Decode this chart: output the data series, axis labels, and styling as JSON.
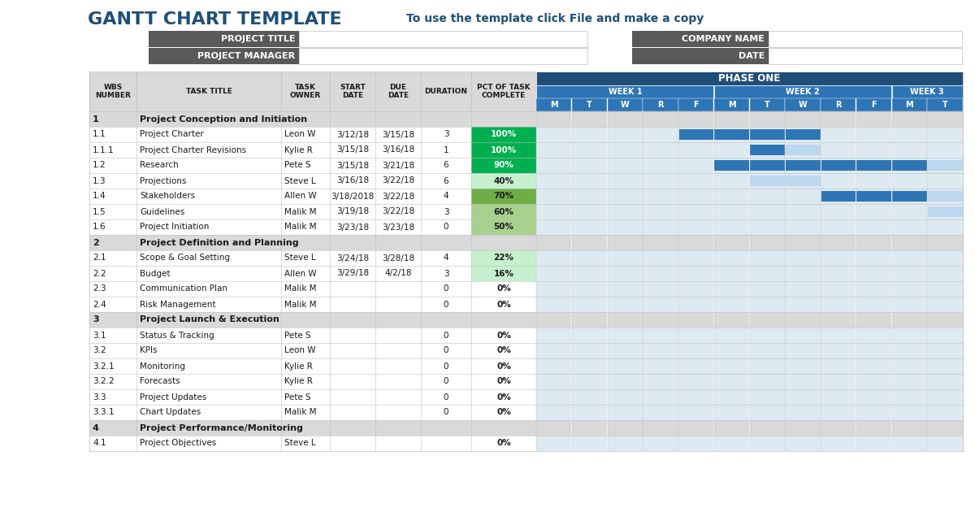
{
  "title": "GANTT CHART TEMPLATE",
  "subtitle": "To use the template click File and make a copy",
  "title_color": "#1F4E79",
  "subtitle_color": "#1F4E79",
  "header_bg": "#595959",
  "phase_header_bg": "#1F4E79",
  "week_header_bg": "#2E75B6",
  "day_header_bg": "#2E75B6",
  "section_row_bg": "#D9D9D9",
  "normal_row_bg": "#FFFFFF",
  "grid_color": "#BFBFBF",
  "gantt_dark_blue": "#2E75B6",
  "gantt_light_blue": "#BDD7EE",
  "gantt_cell_bg": "#DEEAF1",
  "days": [
    "M",
    "T",
    "W",
    "R",
    "F",
    "M",
    "T",
    "W",
    "R",
    "F",
    "M",
    "T"
  ],
  "week_labels": [
    "WEEK 1",
    "WEEK 2",
    "WEEK 3"
  ],
  "week_spans": [
    5,
    5,
    2
  ],
  "week_starts": [
    0,
    5,
    10
  ],
  "rows": [
    {
      "wbs": "1",
      "task": "Project Conception and Initiation",
      "owner": "",
      "start": "",
      "due": "",
      "dur": "",
      "pct": "",
      "pct_val": -1,
      "is_section": true,
      "gantt_dark": [],
      "gantt_light": []
    },
    {
      "wbs": "1.1",
      "task": "Project Charter",
      "owner": "Leon W",
      "start": "3/12/18",
      "due": "3/15/18",
      "dur": "3",
      "pct": "100%",
      "pct_val": 100,
      "is_section": false,
      "gantt_dark": [
        4,
        5,
        6,
        7
      ],
      "gantt_light": []
    },
    {
      "wbs": "1.1.1",
      "task": "Project Charter Revisions",
      "owner": "Kylie R",
      "start": "3/15/18",
      "due": "3/16/18",
      "dur": "1",
      "pct": "100%",
      "pct_val": 100,
      "is_section": false,
      "gantt_dark": [
        6
      ],
      "gantt_light": [
        7
      ]
    },
    {
      "wbs": "1.2",
      "task": "Research",
      "owner": "Pete S",
      "start": "3/15/18",
      "due": "3/21/18",
      "dur": "6",
      "pct": "90%",
      "pct_val": 90,
      "is_section": false,
      "gantt_dark": [
        5,
        6,
        7,
        8,
        9,
        10
      ],
      "gantt_light": [
        11
      ]
    },
    {
      "wbs": "1.3",
      "task": "Projections",
      "owner": "Steve L",
      "start": "3/16/18",
      "due": "3/22/18",
      "dur": "6",
      "pct": "40%",
      "pct_val": 40,
      "is_section": false,
      "gantt_dark": [],
      "gantt_light": [
        6,
        7
      ]
    },
    {
      "wbs": "1.4",
      "task": "Stakeholders",
      "owner": "Allen W",
      "start": "3/18/2018",
      "due": "3/22/18",
      "dur": "4",
      "pct": "70%",
      "pct_val": 70,
      "is_section": false,
      "gantt_dark": [
        8,
        9,
        10
      ],
      "gantt_light": [
        11
      ]
    },
    {
      "wbs": "1.5",
      "task": "Guidelines",
      "owner": "Malik M",
      "start": "3/19/18",
      "due": "3/22/18",
      "dur": "3",
      "pct": "60%",
      "pct_val": 60,
      "is_section": false,
      "gantt_dark": [],
      "gantt_light": [
        11
      ]
    },
    {
      "wbs": "1.6",
      "task": "Project Initiation",
      "owner": "Malik M",
      "start": "3/23/18",
      "due": "3/23/18",
      "dur": "0",
      "pct": "50%",
      "pct_val": 50,
      "is_section": false,
      "gantt_dark": [],
      "gantt_light": []
    },
    {
      "wbs": "2",
      "task": "Project Definition and Planning",
      "owner": "",
      "start": "",
      "due": "",
      "dur": "",
      "pct": "",
      "pct_val": -1,
      "is_section": true,
      "gantt_dark": [],
      "gantt_light": []
    },
    {
      "wbs": "2.1",
      "task": "Scope & Goal Setting",
      "owner": "Steve L",
      "start": "3/24/18",
      "due": "3/28/18",
      "dur": "4",
      "pct": "22%",
      "pct_val": 22,
      "is_section": false,
      "gantt_dark": [],
      "gantt_light": []
    },
    {
      "wbs": "2.2",
      "task": "Budget",
      "owner": "Allen W",
      "start": "3/29/18",
      "due": "4/2/18",
      "dur": "3",
      "pct": "16%",
      "pct_val": 16,
      "is_section": false,
      "gantt_dark": [],
      "gantt_light": []
    },
    {
      "wbs": "2.3",
      "task": "Communication Plan",
      "owner": "Malik M",
      "start": "",
      "due": "",
      "dur": "0",
      "pct": "0%",
      "pct_val": 0,
      "is_section": false,
      "gantt_dark": [],
      "gantt_light": []
    },
    {
      "wbs": "2.4",
      "task": "Risk Management",
      "owner": "Malik M",
      "start": "",
      "due": "",
      "dur": "0",
      "pct": "0%",
      "pct_val": 0,
      "is_section": false,
      "gantt_dark": [],
      "gantt_light": []
    },
    {
      "wbs": "3",
      "task": "Project Launch & Execution",
      "owner": "",
      "start": "",
      "due": "",
      "dur": "",
      "pct": "",
      "pct_val": -1,
      "is_section": true,
      "gantt_dark": [],
      "gantt_light": []
    },
    {
      "wbs": "3.1",
      "task": "Status & Tracking",
      "owner": "Pete S",
      "start": "",
      "due": "",
      "dur": "0",
      "pct": "0%",
      "pct_val": 0,
      "is_section": false,
      "gantt_dark": [],
      "gantt_light": []
    },
    {
      "wbs": "3.2",
      "task": "KPIs",
      "owner": "Leon W",
      "start": "",
      "due": "",
      "dur": "0",
      "pct": "0%",
      "pct_val": 0,
      "is_section": false,
      "gantt_dark": [],
      "gantt_light": []
    },
    {
      "wbs": "3.2.1",
      "task": "Monitoring",
      "owner": "Kylie R",
      "start": "",
      "due": "",
      "dur": "0",
      "pct": "0%",
      "pct_val": 0,
      "is_section": false,
      "gantt_dark": [],
      "gantt_light": []
    },
    {
      "wbs": "3.2.2",
      "task": "Forecasts",
      "owner": "Kylie R",
      "start": "",
      "due": "",
      "dur": "0",
      "pct": "0%",
      "pct_val": 0,
      "is_section": false,
      "gantt_dark": [],
      "gantt_light": []
    },
    {
      "wbs": "3.3",
      "task": "Project Updates",
      "owner": "Pete S",
      "start": "",
      "due": "",
      "dur": "0",
      "pct": "0%",
      "pct_val": 0,
      "is_section": false,
      "gantt_dark": [],
      "gantt_light": []
    },
    {
      "wbs": "3.3.1",
      "task": "Chart Updates",
      "owner": "Malik M",
      "start": "",
      "due": "",
      "dur": "0",
      "pct": "0%",
      "pct_val": 0,
      "is_section": false,
      "gantt_dark": [],
      "gantt_light": []
    },
    {
      "wbs": "4",
      "task": "Project Performance/Monitoring",
      "owner": "",
      "start": "",
      "due": "",
      "dur": "",
      "pct": "",
      "pct_val": -1,
      "is_section": true,
      "gantt_dark": [],
      "gantt_light": []
    },
    {
      "wbs": "4.1",
      "task": "Project Objectives",
      "owner": "Steve L",
      "start": "",
      "due": "",
      "dur": "",
      "pct": "0%",
      "pct_val": 0,
      "is_section": false,
      "gantt_dark": [],
      "gantt_light": []
    }
  ]
}
